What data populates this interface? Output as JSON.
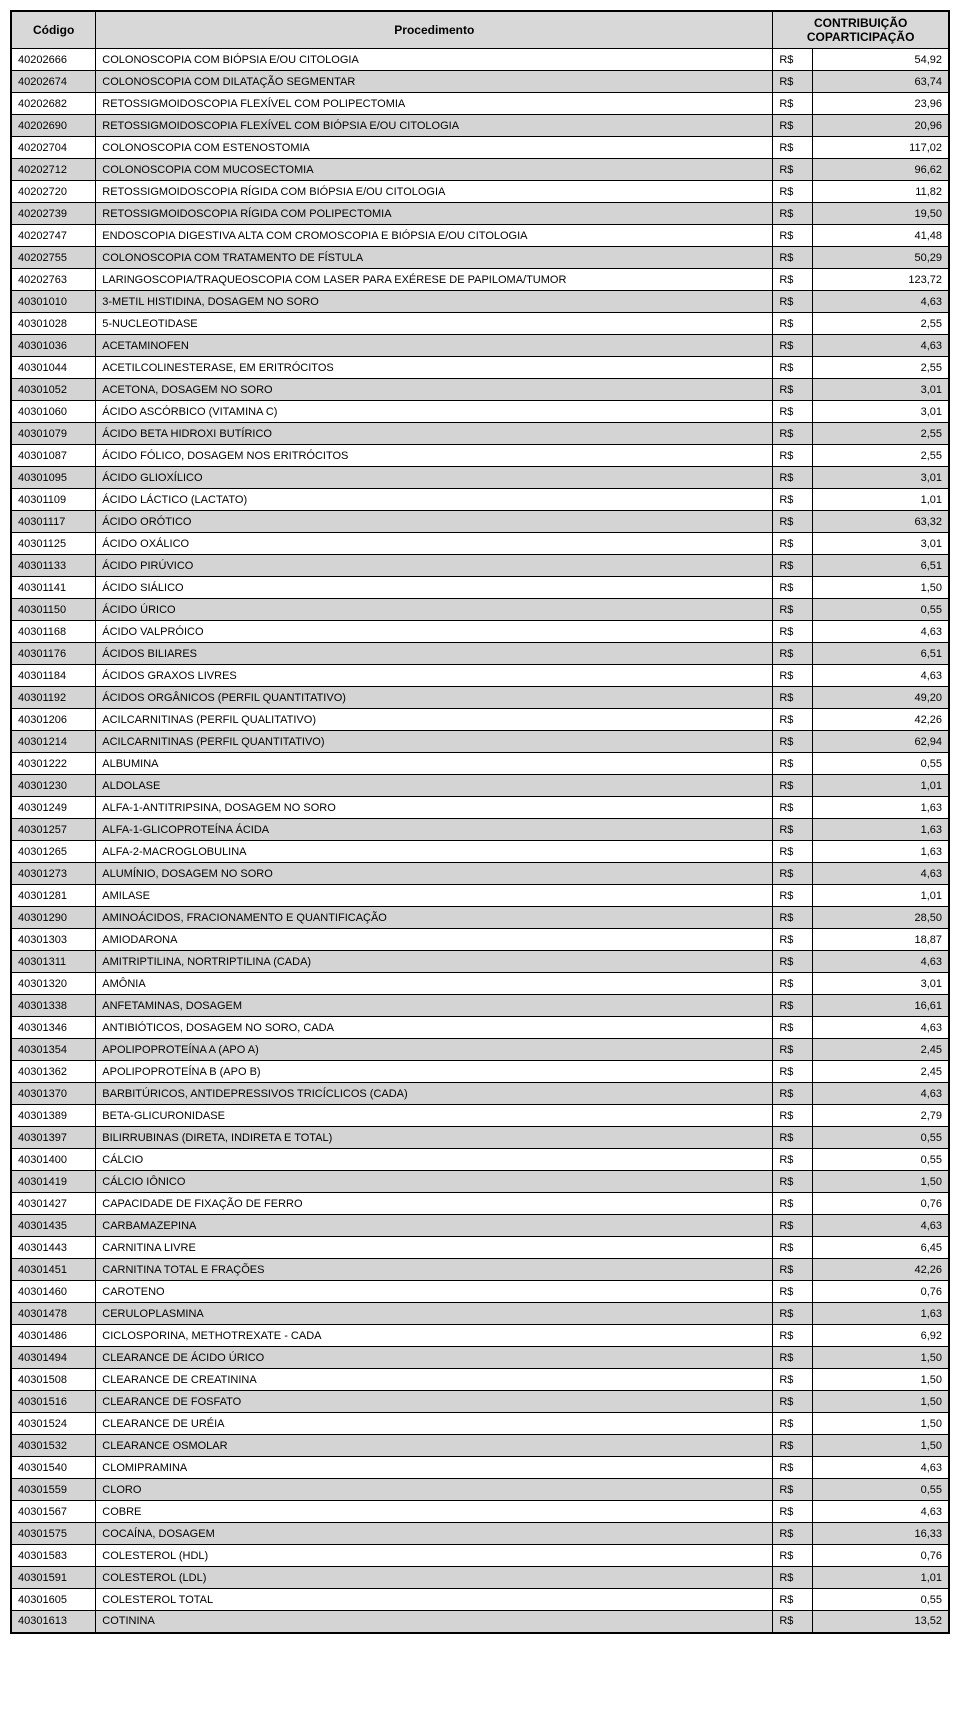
{
  "table": {
    "columns": {
      "codigo": "Código",
      "procedimento": "Procedimento",
      "contribuicao": "CONTRIBUIÇÃO COPARTICIPAÇÃO"
    },
    "rows": [
      {
        "c": "40202666",
        "p": "COLONOSCOPIA COM BIÓPSIA E/OU CITOLOGIA",
        "cur": "R$",
        "v": "54,92",
        "s": false
      },
      {
        "c": "40202674",
        "p": "COLONOSCOPIA COM DILATAÇÃO SEGMENTAR",
        "cur": "R$",
        "v": "63,74",
        "s": true
      },
      {
        "c": "40202682",
        "p": "RETOSSIGMOIDOSCOPIA FLEXÍVEL COM POLIPECTOMIA",
        "cur": "R$",
        "v": "23,96",
        "s": false
      },
      {
        "c": "40202690",
        "p": "RETOSSIGMOIDOSCOPIA FLEXÍVEL COM BIÓPSIA E/OU CITOLOGIA",
        "cur": "R$",
        "v": "20,96",
        "s": true
      },
      {
        "c": "40202704",
        "p": "COLONOSCOPIA COM ESTENOSTOMIA",
        "cur": "R$",
        "v": "117,02",
        "s": false
      },
      {
        "c": "40202712",
        "p": "COLONOSCOPIA COM MUCOSECTOMIA",
        "cur": "R$",
        "v": "96,62",
        "s": true
      },
      {
        "c": "40202720",
        "p": "RETOSSIGMOIDOSCOPIA RÍGIDA COM BIÓPSIA E/OU CITOLOGIA",
        "cur": "R$",
        "v": "11,82",
        "s": false
      },
      {
        "c": "40202739",
        "p": "RETOSSIGMOIDOSCOPIA RÍGIDA COM POLIPECTOMIA",
        "cur": "R$",
        "v": "19,50",
        "s": true
      },
      {
        "c": "40202747",
        "p": "ENDOSCOPIA DIGESTIVA ALTA COM CROMOSCOPIA E BIÓPSIA E/OU CITOLOGIA",
        "cur": "R$",
        "v": "41,48",
        "s": false
      },
      {
        "c": "40202755",
        "p": "COLONOSCOPIA COM TRATAMENTO DE FÍSTULA",
        "cur": "R$",
        "v": "50,29",
        "s": true
      },
      {
        "c": "40202763",
        "p": "LARINGOSCOPIA/TRAQUEOSCOPIA COM LASER PARA EXÉRESE DE PAPILOMA/TUMOR",
        "cur": "R$",
        "v": "123,72",
        "s": false
      },
      {
        "c": "40301010",
        "p": "3-METIL HISTIDINA, DOSAGEM NO SORO",
        "cur": "R$",
        "v": "4,63",
        "s": true
      },
      {
        "c": "40301028",
        "p": "5-NUCLEOTIDASE",
        "cur": "R$",
        "v": "2,55",
        "s": false
      },
      {
        "c": "40301036",
        "p": "ACETAMINOFEN",
        "cur": "R$",
        "v": "4,63",
        "s": true
      },
      {
        "c": "40301044",
        "p": "ACETILCOLINESTERASE, EM ERITRÓCITOS",
        "cur": "R$",
        "v": "2,55",
        "s": false
      },
      {
        "c": "40301052",
        "p": "ACETONA, DOSAGEM NO SORO",
        "cur": "R$",
        "v": "3,01",
        "s": true
      },
      {
        "c": "40301060",
        "p": "ÁCIDO ASCÓRBICO (VITAMINA C)",
        "cur": "R$",
        "v": "3,01",
        "s": false
      },
      {
        "c": "40301079",
        "p": "ÁCIDO BETA HIDROXI BUTÍRICO",
        "cur": "R$",
        "v": "2,55",
        "s": true
      },
      {
        "c": "40301087",
        "p": "ÁCIDO FÓLICO, DOSAGEM NOS ERITRÓCITOS",
        "cur": "R$",
        "v": "2,55",
        "s": false
      },
      {
        "c": "40301095",
        "p": "ÁCIDO GLIOXÍLICO",
        "cur": "R$",
        "v": "3,01",
        "s": true
      },
      {
        "c": "40301109",
        "p": "ÁCIDO LÁCTICO (LACTATO)",
        "cur": "R$",
        "v": "1,01",
        "s": false
      },
      {
        "c": "40301117",
        "p": "ÁCIDO ORÓTICO",
        "cur": "R$",
        "v": "63,32",
        "s": true
      },
      {
        "c": "40301125",
        "p": "ÁCIDO OXÁLICO",
        "cur": "R$",
        "v": "3,01",
        "s": false
      },
      {
        "c": "40301133",
        "p": "ÁCIDO PIRÚVICO",
        "cur": "R$",
        "v": "6,51",
        "s": true
      },
      {
        "c": "40301141",
        "p": "ÁCIDO SIÁLICO",
        "cur": "R$",
        "v": "1,50",
        "s": false
      },
      {
        "c": "40301150",
        "p": "ÁCIDO ÚRICO",
        "cur": "R$",
        "v": "0,55",
        "s": true
      },
      {
        "c": "40301168",
        "p": "ÁCIDO VALPRÓICO",
        "cur": "R$",
        "v": "4,63",
        "s": false
      },
      {
        "c": "40301176",
        "p": "ÁCIDOS BILIARES",
        "cur": "R$",
        "v": "6,51",
        "s": true
      },
      {
        "c": "40301184",
        "p": "ÁCIDOS GRAXOS LIVRES",
        "cur": "R$",
        "v": "4,63",
        "s": false
      },
      {
        "c": "40301192",
        "p": "ÁCIDOS ORGÂNICOS (PERFIL QUANTITATIVO)",
        "cur": "R$",
        "v": "49,20",
        "s": true
      },
      {
        "c": "40301206",
        "p": "ACILCARNITINAS (PERFIL QUALITATIVO)",
        "cur": "R$",
        "v": "42,26",
        "s": false
      },
      {
        "c": "40301214",
        "p": "ACILCARNITINAS (PERFIL QUANTITATIVO)",
        "cur": "R$",
        "v": "62,94",
        "s": true
      },
      {
        "c": "40301222",
        "p": "ALBUMINA",
        "cur": "R$",
        "v": "0,55",
        "s": false
      },
      {
        "c": "40301230",
        "p": "ALDOLASE",
        "cur": "R$",
        "v": "1,01",
        "s": true
      },
      {
        "c": "40301249",
        "p": "ALFA-1-ANTITRIPSINA, DOSAGEM NO SORO",
        "cur": "R$",
        "v": "1,63",
        "s": false
      },
      {
        "c": "40301257",
        "p": "ALFA-1-GLICOPROTEÍNA ÁCIDA",
        "cur": "R$",
        "v": "1,63",
        "s": true
      },
      {
        "c": "40301265",
        "p": "ALFA-2-MACROGLOBULINA",
        "cur": "R$",
        "v": "1,63",
        "s": false
      },
      {
        "c": "40301273",
        "p": "ALUMÍNIO, DOSAGEM NO SORO",
        "cur": "R$",
        "v": "4,63",
        "s": true
      },
      {
        "c": "40301281",
        "p": "AMILASE",
        "cur": "R$",
        "v": "1,01",
        "s": false
      },
      {
        "c": "40301290",
        "p": "AMINOÁCIDOS, FRACIONAMENTO E QUANTIFICAÇÃO",
        "cur": "R$",
        "v": "28,50",
        "s": true
      },
      {
        "c": "40301303",
        "p": "AMIODARONA",
        "cur": "R$",
        "v": "18,87",
        "s": false
      },
      {
        "c": "40301311",
        "p": "AMITRIPTILINA, NORTRIPTILINA (CADA)",
        "cur": "R$",
        "v": "4,63",
        "s": true
      },
      {
        "c": "40301320",
        "p": "AMÔNIA",
        "cur": "R$",
        "v": "3,01",
        "s": false
      },
      {
        "c": "40301338",
        "p": "ANFETAMINAS, DOSAGEM",
        "cur": "R$",
        "v": "16,61",
        "s": true
      },
      {
        "c": "40301346",
        "p": "ANTIBIÓTICOS, DOSAGEM NO SORO, CADA",
        "cur": "R$",
        "v": "4,63",
        "s": false
      },
      {
        "c": "40301354",
        "p": "APOLIPOPROTEÍNA A (APO A)",
        "cur": "R$",
        "v": "2,45",
        "s": true
      },
      {
        "c": "40301362",
        "p": "APOLIPOPROTEÍNA B (APO B)",
        "cur": "R$",
        "v": "2,45",
        "s": false
      },
      {
        "c": "40301370",
        "p": "BARBITÚRICOS, ANTIDEPRESSIVOS TRICÍCLICOS (CADA)",
        "cur": "R$",
        "v": "4,63",
        "s": true
      },
      {
        "c": "40301389",
        "p": "BETA-GLICURONIDASE",
        "cur": "R$",
        "v": "2,79",
        "s": false
      },
      {
        "c": "40301397",
        "p": "BILIRRUBINAS (DIRETA, INDIRETA E TOTAL)",
        "cur": "R$",
        "v": "0,55",
        "s": true
      },
      {
        "c": "40301400",
        "p": "CÁLCIO",
        "cur": "R$",
        "v": "0,55",
        "s": false
      },
      {
        "c": "40301419",
        "p": "CÁLCIO IÔNICO",
        "cur": "R$",
        "v": "1,50",
        "s": true
      },
      {
        "c": "40301427",
        "p": "CAPACIDADE DE FIXAÇÃO DE FERRO",
        "cur": "R$",
        "v": "0,76",
        "s": false
      },
      {
        "c": "40301435",
        "p": "CARBAMAZEPINA",
        "cur": "R$",
        "v": "4,63",
        "s": true
      },
      {
        "c": "40301443",
        "p": "CARNITINA LIVRE",
        "cur": "R$",
        "v": "6,45",
        "s": false
      },
      {
        "c": "40301451",
        "p": "CARNITINA TOTAL E FRAÇÕES",
        "cur": "R$",
        "v": "42,26",
        "s": true
      },
      {
        "c": "40301460",
        "p": "CAROTENO",
        "cur": "R$",
        "v": "0,76",
        "s": false
      },
      {
        "c": "40301478",
        "p": "CERULOPLASMINA",
        "cur": "R$",
        "v": "1,63",
        "s": true
      },
      {
        "c": "40301486",
        "p": "CICLOSPORINA, METHOTREXATE - CADA",
        "cur": "R$",
        "v": "6,92",
        "s": false
      },
      {
        "c": "40301494",
        "p": "CLEARANCE DE ÁCIDO ÚRICO",
        "cur": "R$",
        "v": "1,50",
        "s": true
      },
      {
        "c": "40301508",
        "p": "CLEARANCE DE CREATININA",
        "cur": "R$",
        "v": "1,50",
        "s": false
      },
      {
        "c": "40301516",
        "p": "CLEARANCE DE FOSFATO",
        "cur": "R$",
        "v": "1,50",
        "s": true
      },
      {
        "c": "40301524",
        "p": "CLEARANCE DE URÉIA",
        "cur": "R$",
        "v": "1,50",
        "s": false
      },
      {
        "c": "40301532",
        "p": "CLEARANCE OSMOLAR",
        "cur": "R$",
        "v": "1,50",
        "s": true
      },
      {
        "c": "40301540",
        "p": "CLOMIPRAMINA",
        "cur": "R$",
        "v": "4,63",
        "s": false
      },
      {
        "c": "40301559",
        "p": "CLORO",
        "cur": "R$",
        "v": "0,55",
        "s": true
      },
      {
        "c": "40301567",
        "p": "COBRE",
        "cur": "R$",
        "v": "4,63",
        "s": false
      },
      {
        "c": "40301575",
        "p": "COCAÍNA, DOSAGEM",
        "cur": "R$",
        "v": "16,33",
        "s": true
      },
      {
        "c": "40301583",
        "p": "COLESTEROL (HDL)",
        "cur": "R$",
        "v": "0,76",
        "s": false
      },
      {
        "c": "40301591",
        "p": "COLESTEROL (LDL)",
        "cur": "R$",
        "v": "1,01",
        "s": true
      },
      {
        "c": "40301605",
        "p": "COLESTEROL TOTAL",
        "cur": "R$",
        "v": "0,55",
        "s": false
      },
      {
        "c": "40301613",
        "p": "COTININA",
        "cur": "R$",
        "v": "13,52",
        "s": true
      }
    ]
  }
}
